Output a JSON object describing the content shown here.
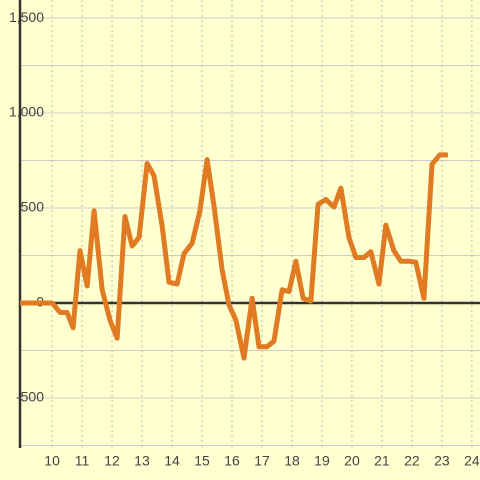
{
  "chart_data": {
    "type": "line",
    "x": [
      8.93,
      10,
      10.27,
      10.5,
      10.7,
      10.93,
      11.17,
      11.4,
      11.67,
      11.93,
      12.17,
      12.43,
      12.67,
      12.9,
      13.17,
      13.4,
      13.67,
      13.9,
      14.17,
      14.4,
      14.67,
      14.93,
      15.17,
      15.4,
      15.67,
      15.9,
      16.13,
      16.4,
      16.67,
      16.9,
      17.17,
      17.4,
      17.67,
      17.9,
      18.13,
      18.37,
      18.63,
      18.87,
      19.13,
      19.4,
      19.63,
      19.9,
      20.13,
      20.4,
      20.63,
      20.9,
      21.13,
      21.4,
      21.63,
      21.9,
      22.13,
      22.4,
      22.67,
      22.93,
      23.2
    ],
    "series": [
      {
        "color": "#e07b24",
        "values": [
          0,
          0,
          -50,
          -50,
          -130,
          275,
          90,
          485,
          70,
          -90,
          -185,
          455,
          300,
          345,
          735,
          670,
          405,
          110,
          100,
          260,
          315,
          485,
          755,
          510,
          175,
          -10,
          -90,
          -290,
          25,
          -230,
          -230,
          -200,
          70,
          60,
          220,
          25,
          10,
          520,
          545,
          505,
          605,
          345,
          240,
          240,
          270,
          100,
          410,
          275,
          220,
          220,
          215,
          25,
          730,
          780,
          780
        ]
      }
    ],
    "xlim": [
      8.93,
      24.27
    ],
    "ylim": [
      -763,
      1595
    ],
    "xticks": [
      10,
      11,
      12,
      13,
      14,
      15,
      16,
      17,
      18,
      19,
      20,
      21,
      22,
      23,
      24
    ],
    "yticks": [
      -500,
      0,
      500,
      {
        "value": 1000,
        "label": "1,000"
      },
      {
        "value": 1500,
        "label": "1,500"
      }
    ],
    "yminor": [
      -750,
      -250,
      250,
      750,
      1250
    ],
    "grid": true
  }
}
